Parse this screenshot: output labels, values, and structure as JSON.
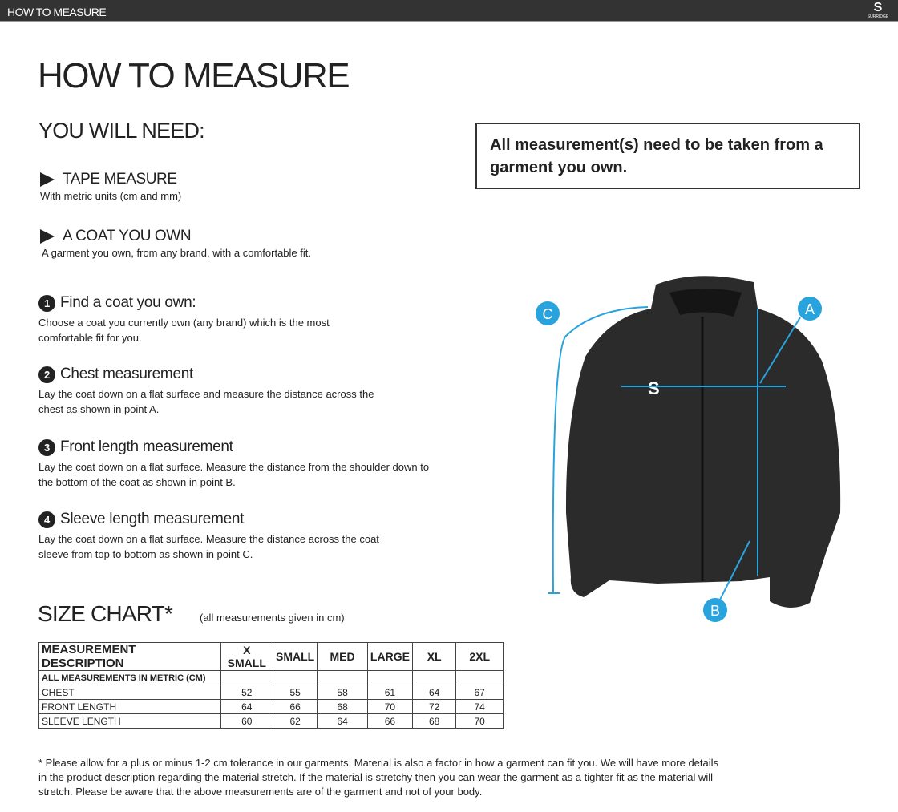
{
  "header": {
    "title": "HOW TO MEASURE",
    "logo_text": "SURRIDGE"
  },
  "title": "HOW TO MEASURE",
  "you_will_need": {
    "heading": "YOU WILL NEED:",
    "items": [
      {
        "title": "TAPE MEASURE",
        "desc": "With metric units (cm and mm)"
      },
      {
        "title": "A COAT YOU OWN",
        "desc": "A garment you own, from any brand, with a comfortable fit."
      }
    ]
  },
  "steps": [
    {
      "num": "1",
      "title": "Find a coat you own:",
      "desc": "Choose a coat you currently own (any brand) which is the most comfortable fit for you."
    },
    {
      "num": "2",
      "title": "Chest measurement",
      "desc": "Lay the coat down on a flat surface and measure the distance across the chest as shown in point A."
    },
    {
      "num": "3",
      "title": "Front length measurement",
      "desc": "Lay the coat down on a flat surface. Measure the distance from the shoulder down to the bottom of the coat as shown in point B."
    },
    {
      "num": "4",
      "title": "Sleeve length measurement",
      "desc": "Lay the coat down on a flat surface. Measure the distance across the coat sleeve from top to bottom as shown in point C."
    }
  ],
  "note": "All measurement(s) need to be taken from a garment you own.",
  "diagram": {
    "labels": [
      "A",
      "B",
      "C"
    ],
    "accent": "#29a3dd"
  },
  "size_chart": {
    "title": "SIZE CHART*",
    "note": "(all measurements given in cm)",
    "headers": [
      "MEASUREMENT DESCRIPTION",
      "X SMALL",
      "SMALL",
      "MED",
      "LARGE",
      "XL",
      "2XL"
    ],
    "subheader": "ALL MEASUREMENTS IN METRIC (CM)",
    "rows": [
      {
        "label": "CHEST",
        "values": [
          "52",
          "55",
          "58",
          "61",
          "64",
          "67"
        ]
      },
      {
        "label": "FRONT LENGTH",
        "values": [
          "64",
          "66",
          "68",
          "70",
          "72",
          "74"
        ]
      },
      {
        "label": "SLEEVE LENGTH",
        "values": [
          "60",
          "62",
          "64",
          "66",
          "68",
          "70"
        ]
      }
    ]
  },
  "footnote": "* Please allow for a plus or minus 1-2 cm tolerance in our garments. Material is also a factor in how a garment can fit you. We will have more details in the product description regarding the material stretch.  If the material is stretchy then you can wear the garment as a tighter fit as the material will stretch.  Please be aware that the above measurements are of the garment and not of your body."
}
